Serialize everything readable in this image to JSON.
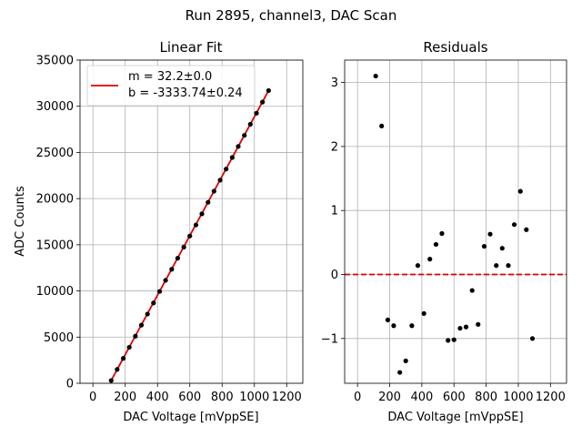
{
  "figure_title": "Run 2895, channel3, DAC Scan",
  "chart_data": [
    {
      "type": "scatter",
      "title": "Linear Fit",
      "xlabel": "DAC Voltage [mVppSE]",
      "ylabel": "ADC Counts",
      "xlim": [
        -80,
        1300
      ],
      "ylim": [
        0,
        35000
      ],
      "xticks": [
        0,
        200,
        400,
        600,
        800,
        1000,
        1200
      ],
      "yticks": [
        0,
        5000,
        10000,
        15000,
        20000,
        25000,
        30000,
        35000
      ],
      "grid": true,
      "legend": {
        "placement": "upper-left",
        "entries": [
          "m = 32.2±0.0",
          "b = -3333.74±0.24"
        ],
        "line_color": "#e00000"
      },
      "fit": {
        "slope": 32.2,
        "intercept": -3333.74,
        "x_range": [
          113,
          1088
        ],
        "color": "#e00000"
      },
      "points": {
        "color": "#000000",
        "x": [
          113,
          150,
          188,
          225,
          263,
          300,
          338,
          375,
          413,
          450,
          488,
          525,
          563,
          600,
          638,
          675,
          713,
          750,
          788,
          825,
          863,
          900,
          938,
          975,
          1013,
          1050,
          1088
        ],
        "y": [
          300,
          1500,
          2700,
          3900,
          5100,
          6300,
          7500,
          8700,
          9950,
          11150,
          12350,
          13550,
          14750,
          15950,
          17150,
          18350,
          19600,
          20800,
          22000,
          23200,
          24450,
          25650,
          26850,
          28050,
          29250,
          30450,
          31700
        ]
      }
    },
    {
      "type": "scatter",
      "title": "Residuals",
      "xlabel": "DAC Voltage [mVppSE]",
      "ylabel": "",
      "xlim": [
        -80,
        1300
      ],
      "ylim": [
        -1.7,
        3.35
      ],
      "xticks": [
        0,
        200,
        400,
        600,
        800,
        1000,
        1200
      ],
      "yticks": [
        -1,
        0,
        1,
        2,
        3
      ],
      "grid": true,
      "zero_line": {
        "y": 0,
        "color": "#e00000",
        "style": "dashed"
      },
      "points": {
        "color": "#000000",
        "x": [
          113,
          150,
          188,
          225,
          263,
          300,
          338,
          375,
          413,
          450,
          488,
          525,
          563,
          600,
          638,
          675,
          713,
          750,
          788,
          825,
          863,
          900,
          938,
          975,
          1013,
          1050,
          1088
        ],
        "y": [
          3.1,
          2.32,
          -0.71,
          -0.8,
          -1.53,
          -1.35,
          -0.8,
          0.14,
          -0.61,
          0.24,
          0.47,
          0.64,
          -1.03,
          -1.02,
          -0.84,
          -0.82,
          -0.25,
          -0.78,
          0.44,
          0.63,
          0.14,
          0.41,
          0.14,
          0.78,
          1.3,
          0.7,
          -1.0
        ]
      }
    }
  ]
}
